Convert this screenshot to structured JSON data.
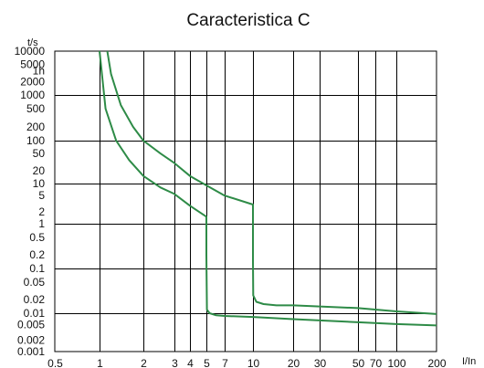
{
  "chart_data": {
    "type": "line",
    "title": "Caracteristica C",
    "xlabel": "I/In",
    "ylabel": "t/s",
    "x_scale": "log",
    "y_scale": "log",
    "xlim": [
      0.5,
      200
    ],
    "ylim": [
      0.001,
      10000
    ],
    "grid": true,
    "x_ticks": [
      "0.5",
      "1",
      "2",
      "3",
      "4",
      "5",
      "7",
      "10",
      "20",
      "30",
      "50",
      "70",
      "100",
      "200"
    ],
    "y_ticks": [
      "0.001",
      "0.002",
      "0.005",
      "0.01",
      "0.02",
      "0.05",
      "0.1",
      "0.2",
      "0.5",
      "1",
      "2",
      "5",
      "10",
      "20",
      "50",
      "100",
      "200",
      "500",
      "1000",
      "1h",
      "2000",
      "5000",
      "10000"
    ],
    "colors": {
      "curve": "#2e8b47",
      "grid": "#000000"
    },
    "series": [
      {
        "x": [
          1.0,
          1.1,
          1.3,
          1.6,
          2.0,
          2.5,
          3.0,
          4.0,
          5.0,
          5.0,
          5.05,
          5.3,
          6.0,
          7.0,
          10.0,
          20.0,
          50.0,
          100.0,
          200.0
        ],
        "y": [
          10000,
          500,
          100,
          35,
          15,
          8,
          5.5,
          2.8,
          1.5,
          0.2,
          0.012,
          0.01,
          0.0088,
          0.0085,
          0.008,
          0.007,
          0.0058,
          0.0052,
          0.0048
        ]
      },
      {
        "x": [
          1.13,
          1.2,
          1.4,
          1.7,
          2.0,
          2.5,
          3.0,
          4.0,
          5.0,
          7.0,
          10.0,
          10.0,
          10.05,
          10.6,
          12.0,
          15.0,
          20.0,
          50.0,
          100.0,
          200.0
        ],
        "y": [
          10000,
          3000,
          600,
          200,
          100,
          50,
          30,
          15,
          9,
          5,
          3,
          0.15,
          0.025,
          0.018,
          0.016,
          0.015,
          0.015,
          0.013,
          0.011,
          0.0095
        ]
      }
    ]
  }
}
